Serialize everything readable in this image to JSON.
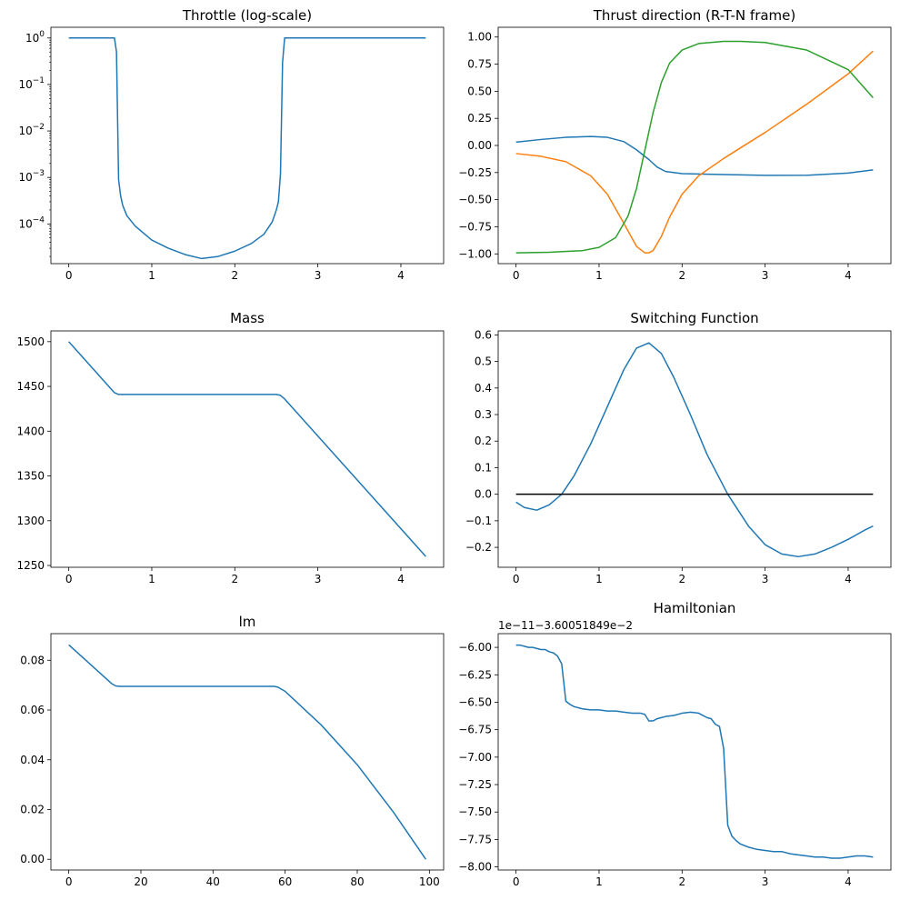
{
  "chart_data": [
    {
      "id": "throttle",
      "type": "line",
      "title": "Throttle (log-scale)",
      "xlabel": "",
      "ylabel": "",
      "xlim": [
        -0.215,
        4.515
      ],
      "ylim": [
        1.4e-05,
        1.7
      ],
      "yscale": "log",
      "grid": false,
      "xticks": [
        0,
        1,
        2,
        3,
        4
      ],
      "xtick_labels": [
        "0",
        "1",
        "2",
        "3",
        "4"
      ],
      "yticks": [
        0.0001,
        0.001,
        0.01,
        0.1,
        1
      ],
      "ytick_base_labels": [
        "10",
        "10",
        "10",
        "10",
        "10"
      ],
      "ytick_exp_labels": [
        "−4",
        "−3",
        "−2",
        "−1",
        "0"
      ],
      "series": [
        {
          "color": "#1f77b4",
          "x": [
            0,
            0.55,
            0.575,
            0.6,
            0.625,
            0.65,
            0.7,
            0.8,
            1.0,
            1.2,
            1.4,
            1.6,
            1.8,
            2.0,
            2.2,
            2.35,
            2.45,
            2.5,
            2.525,
            2.55,
            2.575,
            2.6,
            3.0,
            4.3
          ],
          "y": [
            1,
            1,
            0.5,
            0.0009,
            0.0004,
            0.00025,
            0.00015,
            9e-05,
            4.5e-05,
            3e-05,
            2.2e-05,
            1.8e-05,
            2e-05,
            2.6e-05,
            3.8e-05,
            6e-05,
            0.00011,
            0.0002,
            0.0003,
            0.0012,
            0.3,
            1,
            1,
            1
          ]
        }
      ]
    },
    {
      "id": "thrust",
      "type": "line",
      "title": "Thrust direction (R-T-N frame)",
      "xlabel": "",
      "ylabel": "",
      "xlim": [
        -0.215,
        4.515
      ],
      "ylim": [
        -1.09,
        1.09
      ],
      "grid": false,
      "xticks": [
        0,
        1,
        2,
        3,
        4
      ],
      "xtick_labels": [
        "0",
        "1",
        "2",
        "3",
        "4"
      ],
      "yticks": [
        -1.0,
        -0.75,
        -0.5,
        -0.25,
        0.0,
        0.25,
        0.5,
        0.75,
        1.0
      ],
      "ytick_labels": [
        "−1.00",
        "−0.75",
        "−0.50",
        "−0.25",
        "0.00",
        "0.25",
        "0.50",
        "0.75",
        "1.00"
      ],
      "series": [
        {
          "color": "#1f77b4",
          "x": [
            0,
            0.3,
            0.6,
            0.9,
            1.1,
            1.3,
            1.45,
            1.6,
            1.7,
            1.8,
            2.0,
            2.5,
            3.0,
            3.5,
            4.0,
            4.3
          ],
          "y": [
            0.03,
            0.055,
            0.075,
            0.083,
            0.075,
            0.035,
            -0.04,
            -0.13,
            -0.2,
            -0.24,
            -0.26,
            -0.268,
            -0.276,
            -0.275,
            -0.255,
            -0.225
          ]
        },
        {
          "color": "#ff7f0e",
          "x": [
            0,
            0.3,
            0.6,
            0.9,
            1.1,
            1.3,
            1.45,
            1.55,
            1.6,
            1.65,
            1.75,
            1.85,
            2.0,
            2.2,
            2.5,
            3.0,
            3.5,
            4.0,
            4.3
          ],
          "y": [
            -0.075,
            -0.1,
            -0.15,
            -0.28,
            -0.45,
            -0.72,
            -0.93,
            -0.99,
            -0.99,
            -0.97,
            -0.84,
            -0.66,
            -0.45,
            -0.28,
            -0.12,
            0.12,
            0.38,
            0.66,
            0.87
          ]
        },
        {
          "color": "#2ca02c",
          "x": [
            0,
            0.4,
            0.8,
            1.0,
            1.2,
            1.35,
            1.45,
            1.55,
            1.65,
            1.75,
            1.85,
            2.0,
            2.2,
            2.5,
            2.7,
            3.0,
            3.5,
            4.0,
            4.3
          ],
          "y": [
            -0.99,
            -0.985,
            -0.97,
            -0.94,
            -0.85,
            -0.65,
            -0.4,
            -0.05,
            0.3,
            0.58,
            0.76,
            0.88,
            0.94,
            0.96,
            0.96,
            0.95,
            0.88,
            0.7,
            0.44
          ]
        }
      ]
    },
    {
      "id": "mass",
      "type": "line",
      "title": "Mass",
      "xlabel": "",
      "ylabel": "",
      "xlim": [
        -0.215,
        4.515
      ],
      "ylim": [
        1248,
        1512
      ],
      "grid": false,
      "xticks": [
        0,
        1,
        2,
        3,
        4
      ],
      "xtick_labels": [
        "0",
        "1",
        "2",
        "3",
        "4"
      ],
      "yticks": [
        1250,
        1300,
        1350,
        1400,
        1450,
        1500
      ],
      "ytick_labels": [
        "1250",
        "1300",
        "1350",
        "1400",
        "1450",
        "1500"
      ],
      "series": [
        {
          "color": "#1f77b4",
          "x": [
            0,
            0.55,
            0.6,
            0.65,
            2.5,
            2.55,
            2.6,
            4.3
          ],
          "y": [
            1500,
            1443,
            1441,
            1441,
            1441,
            1440,
            1436,
            1260
          ]
        }
      ]
    },
    {
      "id": "switching",
      "type": "line",
      "title": "Switching Function",
      "xlabel": "",
      "ylabel": "",
      "xlim": [
        -0.215,
        4.515
      ],
      "ylim": [
        -0.275,
        0.615
      ],
      "grid": false,
      "xticks": [
        0,
        1,
        2,
        3,
        4
      ],
      "xtick_labels": [
        "0",
        "1",
        "2",
        "3",
        "4"
      ],
      "yticks": [
        -0.2,
        -0.1,
        0.0,
        0.1,
        0.2,
        0.3,
        0.4,
        0.5,
        0.6
      ],
      "ytick_labels": [
        "−0.2",
        "−0.1",
        "0.0",
        "0.1",
        "0.2",
        "0.3",
        "0.4",
        "0.5",
        "0.6"
      ],
      "series": [
        {
          "color": "#1f77b4",
          "x": [
            0,
            0.1,
            0.25,
            0.4,
            0.55,
            0.7,
            0.9,
            1.1,
            1.3,
            1.45,
            1.6,
            1.75,
            1.9,
            2.1,
            2.3,
            2.55,
            2.8,
            3.0,
            3.2,
            3.4,
            3.6,
            3.8,
            4.0,
            4.2,
            4.3
          ],
          "y": [
            -0.03,
            -0.05,
            -0.06,
            -0.04,
            0.0,
            0.07,
            0.19,
            0.33,
            0.47,
            0.55,
            0.57,
            0.53,
            0.44,
            0.3,
            0.15,
            0.0,
            -0.12,
            -0.19,
            -0.225,
            -0.235,
            -0.225,
            -0.2,
            -0.17,
            -0.135,
            -0.12
          ]
        },
        {
          "color": "#000000",
          "x": [
            0,
            4.3
          ],
          "y": [
            0,
            0
          ]
        }
      ]
    },
    {
      "id": "lm",
      "type": "line",
      "title": "lm",
      "xlabel": "",
      "ylabel": "",
      "xlim": [
        -4.95,
        103.95
      ],
      "ylim": [
        -0.0043,
        0.0907
      ],
      "grid": false,
      "xticks": [
        0,
        20,
        40,
        60,
        80,
        100
      ],
      "xtick_labels": [
        "0",
        "20",
        "40",
        "60",
        "80",
        "100"
      ],
      "yticks": [
        0.0,
        0.02,
        0.04,
        0.06,
        0.08
      ],
      "ytick_labels": [
        "0.00",
        "0.02",
        "0.04",
        "0.06",
        "0.08"
      ],
      "series": [
        {
          "color": "#1f77b4",
          "x": [
            0,
            12,
            13,
            14,
            57,
            58,
            60,
            70,
            80,
            90,
            99
          ],
          "y": [
            0.0862,
            0.0705,
            0.0697,
            0.0695,
            0.0695,
            0.0692,
            0.0675,
            0.054,
            0.038,
            0.019,
            0.0
          ]
        }
      ]
    },
    {
      "id": "hamiltonian",
      "type": "line",
      "title": "Hamiltonian",
      "offset_text": "1e−11−3.60051849e−2",
      "xlabel": "",
      "ylabel": "",
      "xlim": [
        -0.215,
        4.515
      ],
      "ylim": [
        -8.028,
        -5.875
      ],
      "grid": false,
      "xticks": [
        0,
        1,
        2,
        3,
        4
      ],
      "xtick_labels": [
        "0",
        "1",
        "2",
        "3",
        "4"
      ],
      "yticks": [
        -8.0,
        -7.75,
        -7.5,
        -7.25,
        -7.0,
        -6.75,
        -6.5,
        -6.25,
        -6.0
      ],
      "ytick_labels": [
        "−8.00",
        "−7.75",
        "−7.50",
        "−7.25",
        "−7.00",
        "−6.75",
        "−6.50",
        "−6.25",
        "−6.00"
      ],
      "series": [
        {
          "color": "#1f77b4",
          "x": [
            0,
            0.05,
            0.1,
            0.15,
            0.2,
            0.3,
            0.35,
            0.4,
            0.45,
            0.5,
            0.55,
            0.6,
            0.65,
            0.7,
            0.75,
            0.8,
            0.9,
            1.0,
            1.1,
            1.2,
            1.3,
            1.4,
            1.5,
            1.55,
            1.6,
            1.65,
            1.7,
            1.75,
            1.8,
            1.9,
            2.0,
            2.1,
            2.2,
            2.25,
            2.3,
            2.35,
            2.4,
            2.45,
            2.5,
            2.55,
            2.6,
            2.65,
            2.7,
            2.8,
            2.9,
            3.0,
            3.1,
            3.2,
            3.3,
            3.4,
            3.5,
            3.6,
            3.7,
            3.8,
            3.9,
            4.0,
            4.1,
            4.2,
            4.3
          ],
          "y": [
            -5.98,
            -5.98,
            -5.99,
            -6.0,
            -6.0,
            -6.02,
            -6.02,
            -6.04,
            -6.05,
            -6.08,
            -6.15,
            -6.49,
            -6.52,
            -6.54,
            -6.55,
            -6.56,
            -6.57,
            -6.57,
            -6.58,
            -6.58,
            -6.59,
            -6.6,
            -6.6,
            -6.61,
            -6.67,
            -6.67,
            -6.65,
            -6.64,
            -6.63,
            -6.62,
            -6.6,
            -6.59,
            -6.6,
            -6.62,
            -6.64,
            -6.65,
            -6.7,
            -6.72,
            -6.92,
            -7.62,
            -7.72,
            -7.76,
            -7.79,
            -7.82,
            -7.84,
            -7.85,
            -7.86,
            -7.86,
            -7.88,
            -7.89,
            -7.9,
            -7.91,
            -7.91,
            -7.92,
            -7.92,
            -7.91,
            -7.9,
            -7.9,
            -7.91
          ]
        }
      ]
    }
  ]
}
